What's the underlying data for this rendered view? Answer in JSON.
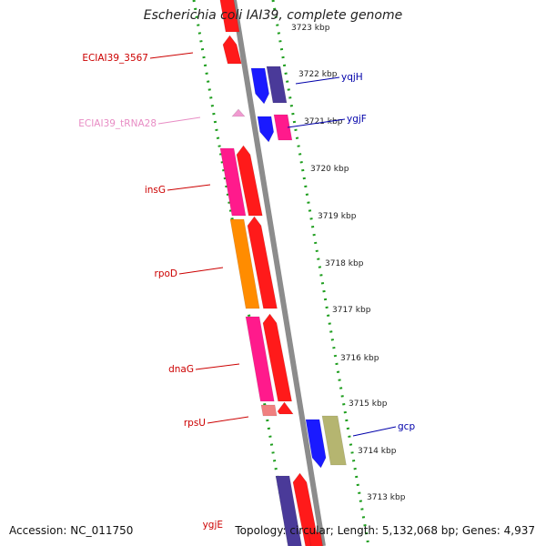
{
  "title": "Escherichia coli IAI39, complete genome",
  "footer": {
    "accession": "Accession: NC_011750",
    "topology": "Topology: circular; Length: 5,132,068 bp; Genes: 4,937"
  },
  "colors": {
    "ring": "#ffffff",
    "backbone": "#8c8c8c",
    "ticks": "#1e9e1e",
    "left_label": "#cc0000",
    "right_label": "#0000aa",
    "trna_label": "#e88cc4"
  },
  "kbp_ticks": [
    {
      "label": "3723 kbp"
    },
    {
      "label": "3722 kbp"
    },
    {
      "label": "3721 kbp"
    },
    {
      "label": "3720 kbp"
    },
    {
      "label": "3719 kbp"
    },
    {
      "label": "3718 kbp"
    },
    {
      "label": "3717 kbp"
    },
    {
      "label": "3716 kbp"
    },
    {
      "label": "3715 kbp"
    },
    {
      "label": "3714 kbp"
    },
    {
      "label": "3713 kbp"
    }
  ],
  "gene_labels_left": [
    {
      "name": "ECIAI39_3567"
    },
    {
      "name": "ECIAI39_tRNA28"
    },
    {
      "name": "insG"
    },
    {
      "name": "rpoD"
    },
    {
      "name": "dnaG"
    },
    {
      "name": "rpsU"
    },
    {
      "name": "ygjE"
    }
  ],
  "gene_labels_right": [
    {
      "name": "yqjH"
    },
    {
      "name": "ygjF"
    },
    {
      "name": "gcp"
    }
  ],
  "features": [
    {
      "name": "feature-top-1",
      "color": "#ff1a1a"
    },
    {
      "name": "feature-ECIAI39_3567",
      "color": "#ff1a1a"
    },
    {
      "name": "feature-tRNA28",
      "color": "#f09ad0"
    },
    {
      "name": "feature-insG-a",
      "color": "#ff1a8c"
    },
    {
      "name": "feature-insG-b",
      "color": "#ff1a1a"
    },
    {
      "name": "feature-rpoD-a",
      "color": "#ff8c00"
    },
    {
      "name": "feature-rpoD-b",
      "color": "#ff1a1a"
    },
    {
      "name": "feature-dnaG-a",
      "color": "#ff1a8c"
    },
    {
      "name": "feature-dnaG-b",
      "color": "#ff1a1a"
    },
    {
      "name": "feature-rpsU-a",
      "color": "#f08080"
    },
    {
      "name": "feature-rpsU-b",
      "color": "#ff1a1a"
    },
    {
      "name": "feature-ygjE-a",
      "color": "#4a3a99"
    },
    {
      "name": "feature-ygjE-b",
      "color": "#ff1a1a"
    },
    {
      "name": "feature-bottom-c",
      "color": "#ff1a1a"
    },
    {
      "name": "feature-yqjH-a",
      "color": "#1a1aff"
    },
    {
      "name": "feature-yqjH-b",
      "color": "#4a3a99"
    },
    {
      "name": "feature-ygjF-a",
      "color": "#1a1aff"
    },
    {
      "name": "feature-ygjF-b",
      "color": "#ff1a8c"
    },
    {
      "name": "feature-gcp-a",
      "color": "#1a1aff"
    },
    {
      "name": "feature-gcp-b",
      "color": "#b5b570"
    }
  ]
}
